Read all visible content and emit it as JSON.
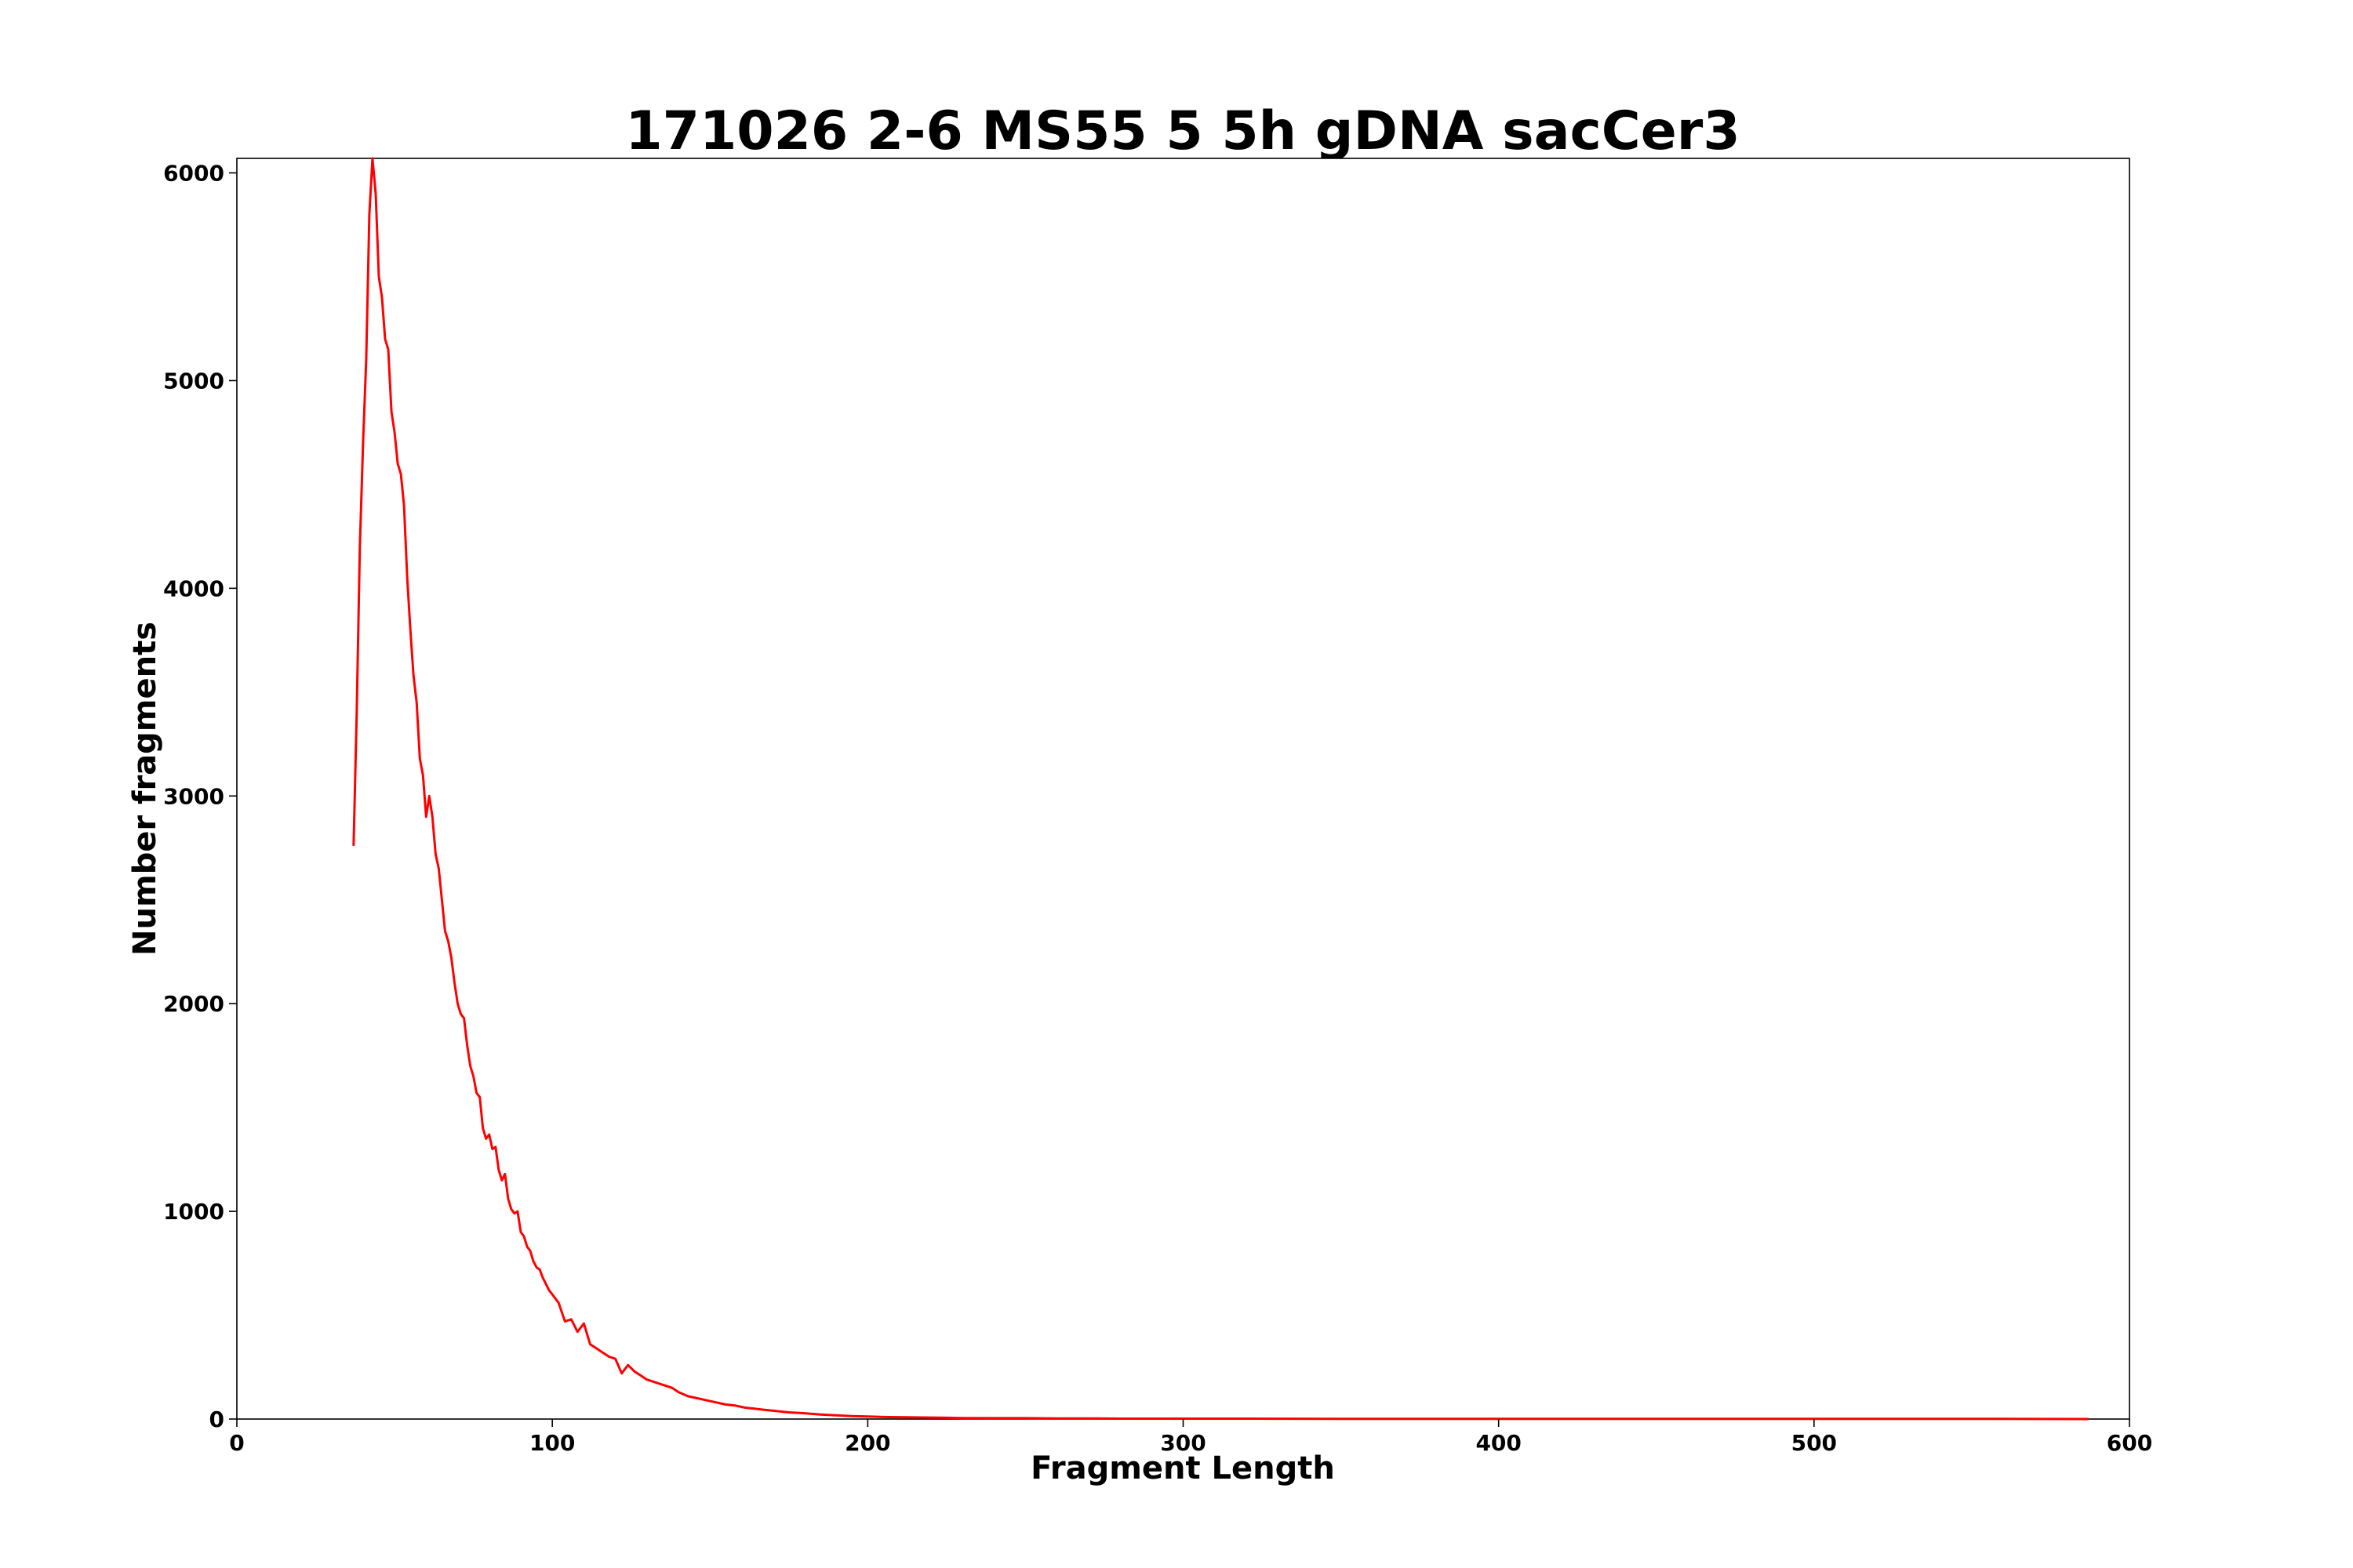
{
  "chart_data": {
    "type": "line",
    "title": "171026 2-6 MS55 5 5h gDNA sacCer3",
    "xlabel": "Fragment Length",
    "ylabel": "Number fragments",
    "xlim": [
      0,
      600
    ],
    "ylim": [
      0,
      6070
    ],
    "xticks": [
      0,
      100,
      200,
      300,
      400,
      500,
      600
    ],
    "yticks": [
      0,
      1000,
      2000,
      3000,
      4000,
      5000,
      6000
    ],
    "grid": false,
    "legend": "none",
    "series": [
      {
        "color": "#ff0000",
        "x": [
          37,
          38,
          39,
          40,
          41,
          42,
          43,
          44,
          45,
          46,
          47,
          48,
          49,
          50,
          51,
          52,
          53,
          54,
          55,
          56,
          57,
          58,
          59,
          60,
          61,
          62,
          63,
          64,
          65,
          66,
          67,
          68,
          69,
          70,
          71,
          72,
          73,
          74,
          75,
          76,
          77,
          78,
          79,
          80,
          81,
          82,
          83,
          84,
          85,
          86,
          87,
          88,
          89,
          90,
          91,
          92,
          93,
          94,
          95,
          96,
          97,
          98,
          99,
          100,
          102,
          104,
          106,
          108,
          110,
          112,
          114,
          116,
          118,
          120,
          122,
          124,
          126,
          128,
          130,
          132,
          134,
          136,
          138,
          140,
          143,
          146,
          149,
          152,
          155,
          158,
          161,
          164,
          167,
          170,
          175,
          180,
          185,
          190,
          195,
          200,
          205,
          210,
          215,
          220,
          225,
          230,
          240,
          250,
          260,
          270,
          280,
          300,
          320,
          350,
          400,
          450,
          500,
          550,
          587
        ],
        "y": [
          2760,
          3400,
          4200,
          4700,
          5100,
          5800,
          6070,
          5900,
          5500,
          5400,
          5200,
          5150,
          4850,
          4750,
          4600,
          4550,
          4400,
          4050,
          3800,
          3580,
          3450,
          3180,
          3100,
          2900,
          3000,
          2900,
          2720,
          2650,
          2500,
          2350,
          2300,
          2220,
          2100,
          2000,
          1950,
          1930,
          1800,
          1700,
          1650,
          1570,
          1550,
          1400,
          1350,
          1370,
          1300,
          1310,
          1200,
          1150,
          1180,
          1060,
          1010,
          990,
          1000,
          900,
          880,
          830,
          810,
          760,
          730,
          720,
          680,
          650,
          620,
          600,
          560,
          470,
          480,
          420,
          460,
          360,
          340,
          320,
          300,
          290,
          220,
          260,
          230,
          210,
          190,
          180,
          170,
          160,
          150,
          130,
          110,
          100,
          90,
          80,
          70,
          65,
          55,
          50,
          45,
          40,
          32,
          28,
          22,
          18,
          14,
          12,
          10,
          9,
          8,
          7,
          6,
          5,
          4,
          4,
          3,
          3,
          2,
          2,
          2,
          1,
          1,
          1,
          1,
          1,
          0
        ]
      }
    ]
  }
}
